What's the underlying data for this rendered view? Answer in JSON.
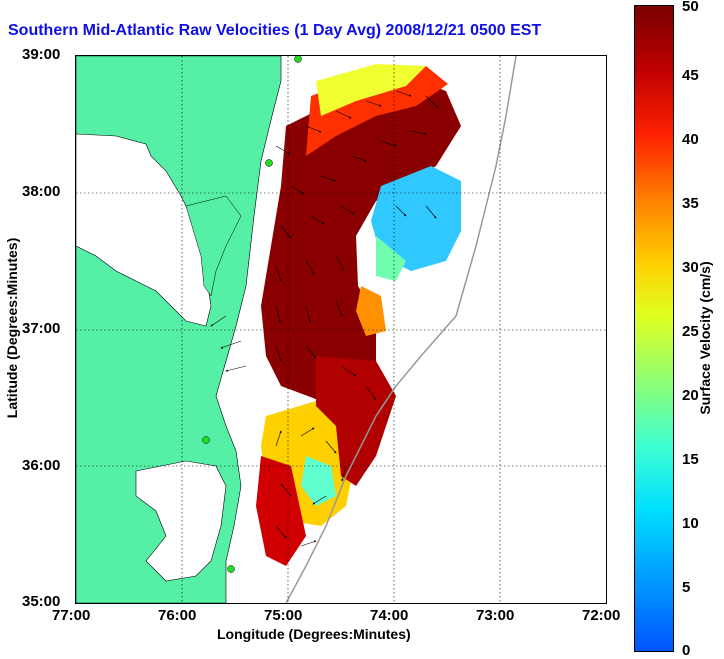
{
  "title": "Southern Mid-Atlantic Raw Velocities (1 Day Avg) 2008/12/21 0500 EST",
  "axes": {
    "xlabel": "Longitude (Degrees:Minutes)",
    "ylabel": "Latitude (Degrees:Minutes)",
    "x_ticks": [
      "77:00",
      "76:00",
      "75:00",
      "74:00",
      "73:00",
      "72:00"
    ],
    "y_ticks": [
      "39:00",
      "38:00",
      "37:00",
      "36:00",
      "35:00"
    ],
    "grid": "dotted"
  },
  "colorbar": {
    "label": "Surface Velocity (cm/s)",
    "ticks": [
      "0",
      "5",
      "10",
      "15",
      "20",
      "25",
      "30",
      "35",
      "40",
      "45",
      "50"
    ],
    "range": [
      0,
      50
    ],
    "colors": [
      "#0055ff",
      "#00e0ff",
      "#90ff70",
      "#e0ff20",
      "#ff8000",
      "#ff2000",
      "#7a0000"
    ]
  },
  "map": {
    "land_color": "#55f0a5",
    "water_color": "#ffffff",
    "station_color": "#22dd22"
  }
}
